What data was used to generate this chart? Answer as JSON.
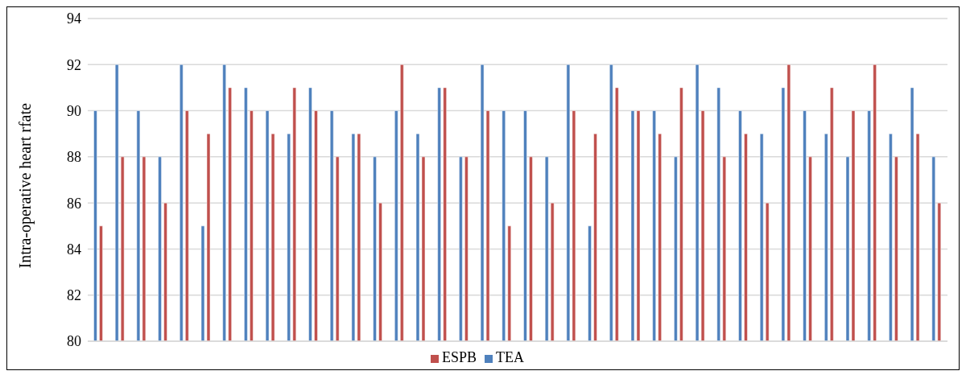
{
  "chart_data": {
    "type": "bar",
    "ylabel": "Intra-operative heart rfate",
    "categories": [
      null,
      null,
      null,
      null,
      null,
      null,
      null,
      null,
      null,
      null,
      null,
      null,
      null,
      null,
      null,
      null,
      null,
      null,
      null,
      null,
      null,
      null,
      null,
      null,
      null,
      null,
      null,
      null,
      null,
      null,
      null,
      null,
      null,
      null,
      null,
      null,
      null,
      null,
      null,
      null
    ],
    "series": [
      {
        "name": "TEA",
        "color": "#4f81bd",
        "values": [
          90,
          92,
          90,
          88,
          92,
          85,
          92,
          91,
          90,
          89,
          91,
          90,
          89,
          88,
          90,
          89,
          91,
          88,
          92,
          90,
          90,
          88,
          92,
          85,
          92,
          90,
          90,
          88,
          92,
          91,
          90,
          89,
          91,
          90,
          89,
          88,
          90,
          89,
          91,
          88
        ]
      },
      {
        "name": "ESPB",
        "color": "#c0504d",
        "values": [
          85,
          88,
          88,
          86,
          90,
          89,
          91,
          90,
          89,
          91,
          90,
          88,
          89,
          86,
          92,
          88,
          91,
          88,
          90,
          85,
          88,
          86,
          90,
          89,
          91,
          90,
          89,
          91,
          90,
          88,
          89,
          86,
          92,
          88,
          91,
          90,
          92,
          88,
          89,
          86
        ]
      }
    ],
    "ylim": [
      80,
      94
    ],
    "yticks": [
      80,
      82,
      84,
      86,
      88,
      90,
      92,
      94
    ],
    "grid": "y",
    "legend": "bottom"
  }
}
